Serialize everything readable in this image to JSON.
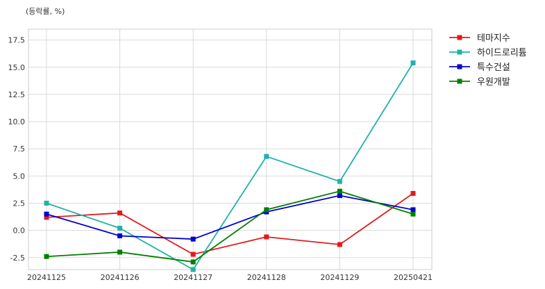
{
  "chart_data": {
    "type": "line",
    "unit_label": "(등락률, %)",
    "categories": [
      "20241125",
      "20241126",
      "20241127",
      "20241128",
      "20241129",
      "20250421"
    ],
    "ylim": [
      -3.6,
      18.5
    ],
    "yticks": [
      -2.5,
      0.0,
      2.5,
      5.0,
      7.5,
      10.0,
      12.5,
      15.0,
      17.5
    ],
    "ytick_labels": [
      "-2.5",
      "0.0",
      "2.5",
      "5.0",
      "7.5",
      "10.0",
      "12.5",
      "15.0",
      "17.5"
    ],
    "grid": true,
    "legend_position": "outside-top-right",
    "series": [
      {
        "name": "테마지수",
        "color": "#e31a1c",
        "values": [
          1.2,
          1.6,
          -2.2,
          -0.6,
          -1.3,
          3.4
        ]
      },
      {
        "name": "하이드로리튬",
        "color": "#20b2aa",
        "values": [
          2.5,
          0.2,
          -3.6,
          6.8,
          4.5,
          15.4
        ]
      },
      {
        "name": "특수건설",
        "color": "#0000cd",
        "values": [
          1.5,
          -0.5,
          -0.8,
          1.7,
          3.2,
          1.9
        ]
      },
      {
        "name": "우원개발",
        "color": "#007f00",
        "values": [
          -2.4,
          -2.0,
          -2.9,
          1.9,
          3.6,
          1.5
        ]
      }
    ]
  }
}
